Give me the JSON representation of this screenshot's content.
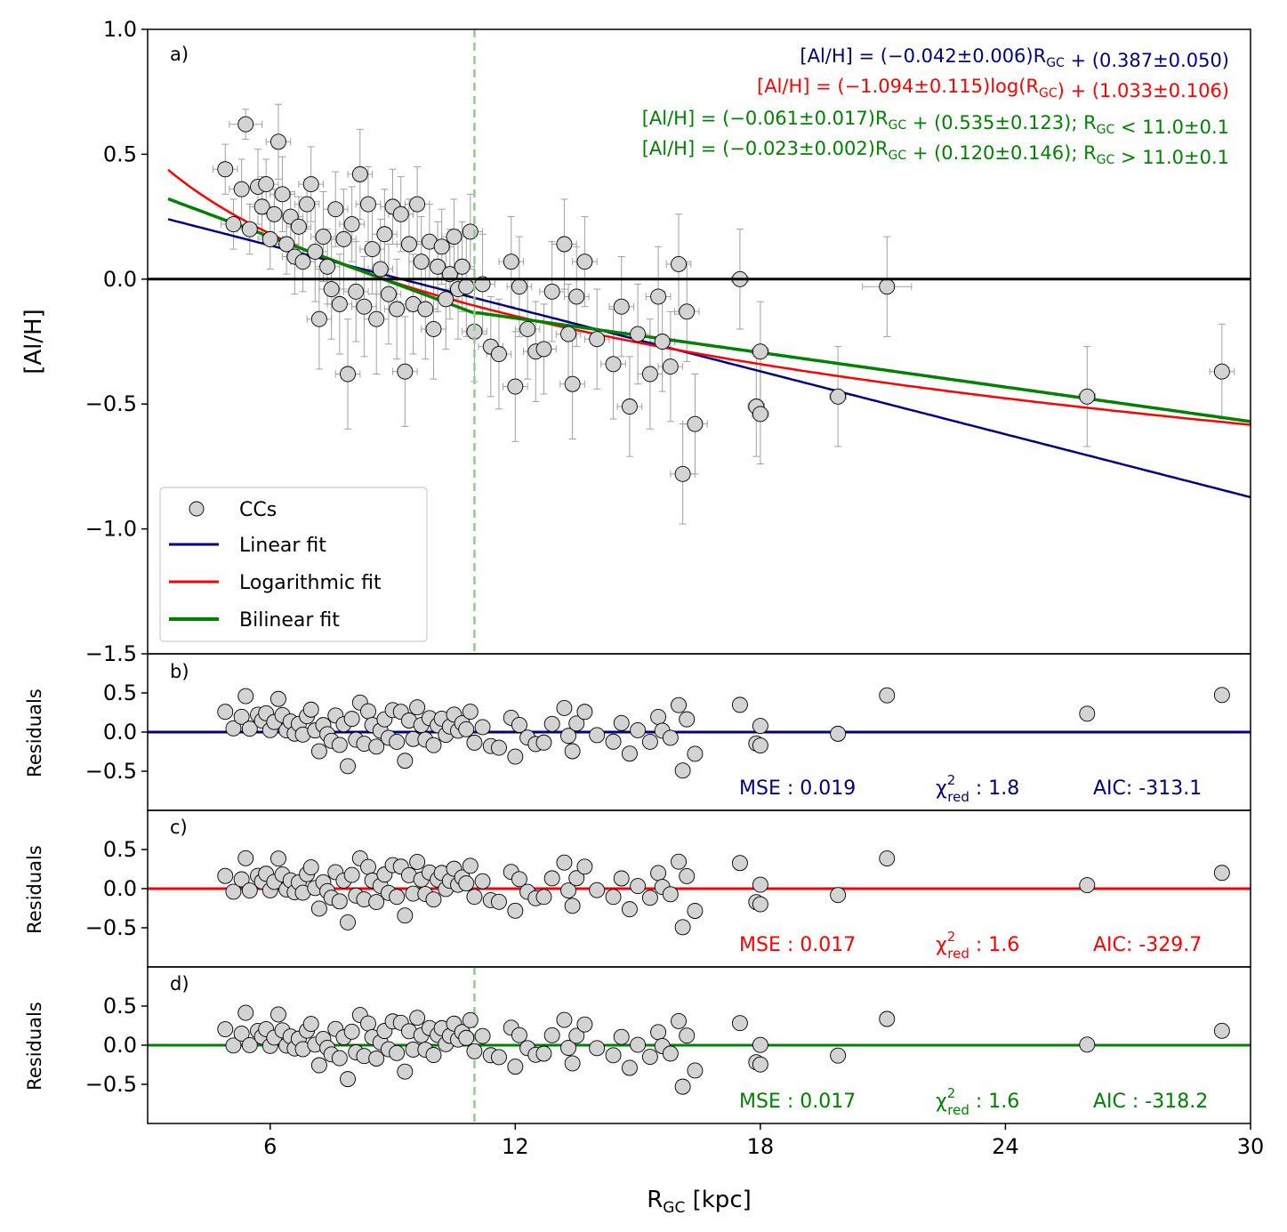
{
  "colors": {
    "linear": "#000080",
    "log": "#ff0000",
    "bilinear": "#008000",
    "marker": "#d3d3d3",
    "errorbar": "#a0a0a0",
    "vline": "#93c993"
  },
  "chart_data": [
    {
      "panel": "a)",
      "type": "scatter",
      "ylabel": "[Al/H]",
      "xlim": [
        3,
        30
      ],
      "ylim": [
        -1.5,
        1.0
      ],
      "yticks": [
        "1.0",
        "0.5",
        "0.0",
        "−0.5",
        "−1.0",
        "−1.5"
      ],
      "vline_x": 11.0,
      "equations": [
        {
          "key": "linear",
          "text": "[Al/H] = (−0.042±0.006)R_GC + (0.387±0.050)"
        },
        {
          "key": "log",
          "text": "[Al/H] = (−1.094±0.115)log(R_GC) + (1.033±0.106)"
        },
        {
          "key": "bilinear",
          "text": "[Al/H] = (−0.061±0.017)R_GC + (0.535±0.123);    R_GC < 11.0±0.1"
        },
        {
          "key": "bilinear",
          "text": "[Al/H] = (−0.023±0.002)R_GC + (0.120±0.146);    R_GC > 11.0±0.1"
        }
      ],
      "legend": {
        "placement": "lower-left",
        "items": [
          {
            "key": "marker",
            "label": "CCs"
          },
          {
            "key": "linear",
            "label": "Linear fit"
          },
          {
            "key": "log",
            "label": "Logarithmic fit"
          },
          {
            "key": "bilinear",
            "label": "Bilinear fit"
          }
        ]
      },
      "fits": {
        "linear": {
          "slope": -0.042,
          "intercept": 0.387
        },
        "log": {
          "slope": -1.094,
          "intercept": 1.033
        },
        "bilinear": {
          "break": 11.0,
          "slope_in": -0.061,
          "intercept_in": 0.535,
          "slope_out": -0.023,
          "intercept_out": 0.12
        }
      },
      "points": [
        {
          "x": 4.9,
          "y": 0.44,
          "ex": 0.3,
          "ey": 0.1
        },
        {
          "x": 5.1,
          "y": 0.22,
          "ex": 0.3,
          "ey": 0.1
        },
        {
          "x": 5.3,
          "y": 0.36,
          "ex": 0.3,
          "ey": 0.12
        },
        {
          "x": 5.4,
          "y": 0.62,
          "ex": 0.4,
          "ey": 0.06
        },
        {
          "x": 5.5,
          "y": 0.2,
          "ex": 0.3,
          "ey": 0.1
        },
        {
          "x": 5.7,
          "y": 0.37,
          "ex": 0.3,
          "ey": 0.15
        },
        {
          "x": 5.8,
          "y": 0.29,
          "ex": 0.3,
          "ey": 0.12
        },
        {
          "x": 5.9,
          "y": 0.38,
          "ex": 0.3,
          "ey": 0.1
        },
        {
          "x": 6.0,
          "y": 0.16,
          "ex": 0.3,
          "ey": 0.12
        },
        {
          "x": 6.1,
          "y": 0.26,
          "ex": 0.3,
          "ey": 0.1
        },
        {
          "x": 6.2,
          "y": 0.55,
          "ex": 0.3,
          "ey": 0.15
        },
        {
          "x": 6.3,
          "y": 0.34,
          "ex": 0.3,
          "ey": 0.15
        },
        {
          "x": 6.4,
          "y": 0.14,
          "ex": 0.3,
          "ey": 0.12
        },
        {
          "x": 6.5,
          "y": 0.25,
          "ex": 0.3,
          "ey": 0.1
        },
        {
          "x": 6.6,
          "y": 0.09,
          "ex": 0.3,
          "ey": 0.15
        },
        {
          "x": 6.7,
          "y": 0.21,
          "ex": 0.3,
          "ey": 0.12
        },
        {
          "x": 6.8,
          "y": 0.07,
          "ex": 0.3,
          "ey": 0.12
        },
        {
          "x": 6.9,
          "y": 0.3,
          "ex": 0.3,
          "ey": 0.1
        },
        {
          "x": 7.0,
          "y": 0.38,
          "ex": 0.3,
          "ey": 0.15
        },
        {
          "x": 7.1,
          "y": 0.11,
          "ex": 0.3,
          "ey": 0.2
        },
        {
          "x": 7.2,
          "y": -0.16,
          "ex": 0.3,
          "ey": 0.2
        },
        {
          "x": 7.3,
          "y": 0.17,
          "ex": 0.3,
          "ey": 0.18
        },
        {
          "x": 7.4,
          "y": 0.05,
          "ex": 0.3,
          "ey": 0.15
        },
        {
          "x": 7.5,
          "y": -0.04,
          "ex": 0.3,
          "ey": 0.2
        },
        {
          "x": 7.6,
          "y": 0.28,
          "ex": 0.3,
          "ey": 0.15
        },
        {
          "x": 7.7,
          "y": -0.1,
          "ex": 0.3,
          "ey": 0.2
        },
        {
          "x": 7.8,
          "y": 0.16,
          "ex": 0.3,
          "ey": 0.2
        },
        {
          "x": 7.9,
          "y": -0.38,
          "ex": 0.3,
          "ey": 0.22
        },
        {
          "x": 8.0,
          "y": 0.22,
          "ex": 0.3,
          "ey": 0.15
        },
        {
          "x": 8.1,
          "y": -0.05,
          "ex": 0.3,
          "ey": 0.2
        },
        {
          "x": 8.2,
          "y": 0.42,
          "ex": 0.3,
          "ey": 0.18
        },
        {
          "x": 8.3,
          "y": -0.11,
          "ex": 0.3,
          "ey": 0.2
        },
        {
          "x": 8.4,
          "y": 0.3,
          "ex": 0.3,
          "ey": 0.15
        },
        {
          "x": 8.5,
          "y": 0.12,
          "ex": 0.3,
          "ey": 0.18
        },
        {
          "x": 8.6,
          "y": -0.16,
          "ex": 0.3,
          "ey": 0.22
        },
        {
          "x": 8.7,
          "y": 0.04,
          "ex": 0.3,
          "ey": 0.2
        },
        {
          "x": 8.8,
          "y": 0.18,
          "ex": 0.3,
          "ey": 0.18
        },
        {
          "x": 8.9,
          "y": -0.06,
          "ex": 0.3,
          "ey": 0.2
        },
        {
          "x": 9.0,
          "y": 0.29,
          "ex": 0.3,
          "ey": 0.15
        },
        {
          "x": 9.1,
          "y": -0.12,
          "ex": 0.3,
          "ey": 0.2
        },
        {
          "x": 9.2,
          "y": 0.26,
          "ex": 0.3,
          "ey": 0.15
        },
        {
          "x": 9.3,
          "y": -0.37,
          "ex": 0.3,
          "ey": 0.22
        },
        {
          "x": 9.4,
          "y": 0.14,
          "ex": 0.3,
          "ey": 0.18
        },
        {
          "x": 9.5,
          "y": -0.1,
          "ex": 0.3,
          "ey": 0.2
        },
        {
          "x": 9.6,
          "y": 0.3,
          "ex": 0.3,
          "ey": 0.15
        },
        {
          "x": 9.7,
          "y": 0.07,
          "ex": 0.3,
          "ey": 0.18
        },
        {
          "x": 9.8,
          "y": -0.12,
          "ex": 0.3,
          "ey": 0.2
        },
        {
          "x": 9.9,
          "y": 0.15,
          "ex": 0.3,
          "ey": 0.15
        },
        {
          "x": 10.0,
          "y": -0.2,
          "ex": 0.3,
          "ey": 0.2
        },
        {
          "x": 10.1,
          "y": 0.05,
          "ex": 0.3,
          "ey": 0.18
        },
        {
          "x": 10.2,
          "y": 0.13,
          "ex": 0.3,
          "ey": 0.15
        },
        {
          "x": 10.3,
          "y": -0.08,
          "ex": 0.3,
          "ey": 0.2
        },
        {
          "x": 10.4,
          "y": 0.02,
          "ex": 0.3,
          "ey": 0.18
        },
        {
          "x": 10.5,
          "y": 0.17,
          "ex": 0.3,
          "ey": 0.15
        },
        {
          "x": 10.6,
          "y": -0.04,
          "ex": 0.3,
          "ey": 0.2
        },
        {
          "x": 10.7,
          "y": 0.05,
          "ex": 0.3,
          "ey": 0.18
        },
        {
          "x": 10.8,
          "y": -0.03,
          "ex": 0.3,
          "ey": 0.2
        },
        {
          "x": 10.9,
          "y": 0.19,
          "ex": 0.3,
          "ey": 0.15
        },
        {
          "x": 11.0,
          "y": -0.21,
          "ex": 0.3,
          "ey": 0.2
        },
        {
          "x": 11.2,
          "y": -0.02,
          "ex": 0.3,
          "ey": 0.2
        },
        {
          "x": 11.4,
          "y": -0.27,
          "ex": 0.3,
          "ey": 0.2
        },
        {
          "x": 11.6,
          "y": -0.3,
          "ex": 0.3,
          "ey": 0.22
        },
        {
          "x": 11.9,
          "y": 0.07,
          "ex": 0.3,
          "ey": 0.18
        },
        {
          "x": 12.0,
          "y": -0.43,
          "ex": 0.3,
          "ey": 0.22
        },
        {
          "x": 12.1,
          "y": -0.03,
          "ex": 0.3,
          "ey": 0.2
        },
        {
          "x": 12.3,
          "y": -0.2,
          "ex": 0.3,
          "ey": 0.2
        },
        {
          "x": 12.5,
          "y": -0.29,
          "ex": 0.3,
          "ey": 0.2
        },
        {
          "x": 12.7,
          "y": -0.28,
          "ex": 0.3,
          "ey": 0.18
        },
        {
          "x": 12.9,
          "y": -0.05,
          "ex": 0.3,
          "ey": 0.2
        },
        {
          "x": 13.2,
          "y": 0.14,
          "ex": 0.3,
          "ey": 0.18
        },
        {
          "x": 13.3,
          "y": -0.22,
          "ex": 0.3,
          "ey": 0.2
        },
        {
          "x": 13.4,
          "y": -0.42,
          "ex": 0.3,
          "ey": 0.22
        },
        {
          "x": 13.5,
          "y": -0.07,
          "ex": 0.3,
          "ey": 0.2
        },
        {
          "x": 13.7,
          "y": 0.07,
          "ex": 0.3,
          "ey": 0.18
        },
        {
          "x": 14.0,
          "y": -0.24,
          "ex": 0.3,
          "ey": 0.2
        },
        {
          "x": 14.4,
          "y": -0.34,
          "ex": 0.3,
          "ey": 0.22
        },
        {
          "x": 14.6,
          "y": -0.11,
          "ex": 0.3,
          "ey": 0.2
        },
        {
          "x": 14.8,
          "y": -0.51,
          "ex": 0.3,
          "ey": 0.2
        },
        {
          "x": 15.0,
          "y": -0.22,
          "ex": 0.3,
          "ey": 0.2
        },
        {
          "x": 15.3,
          "y": -0.38,
          "ex": 0.3,
          "ey": 0.22
        },
        {
          "x": 15.5,
          "y": -0.07,
          "ex": 0.3,
          "ey": 0.2
        },
        {
          "x": 15.6,
          "y": -0.25,
          "ex": 0.3,
          "ey": 0.2
        },
        {
          "x": 15.8,
          "y": -0.35,
          "ex": 0.3,
          "ey": 0.22
        },
        {
          "x": 16.0,
          "y": 0.06,
          "ex": 0.3,
          "ey": 0.2
        },
        {
          "x": 16.1,
          "y": -0.78,
          "ex": 0.3,
          "ey": 0.2
        },
        {
          "x": 16.2,
          "y": -0.13,
          "ex": 0.3,
          "ey": 0.2
        },
        {
          "x": 16.4,
          "y": -0.58,
          "ex": 0.3,
          "ey": 0.2
        },
        {
          "x": 17.5,
          "y": 0.0,
          "ex": 0.2,
          "ey": 0.2
        },
        {
          "x": 17.9,
          "y": -0.51,
          "ex": 0.2,
          "ey": 0.2
        },
        {
          "x": 18.0,
          "y": -0.29,
          "ex": 0.2,
          "ey": 0.2
        },
        {
          "x": 18.0,
          "y": -0.54,
          "ex": 0.2,
          "ey": 0.2
        },
        {
          "x": 19.9,
          "y": -0.47,
          "ex": 0.2,
          "ey": 0.2
        },
        {
          "x": 21.1,
          "y": -0.03,
          "ex": 0.6,
          "ey": 0.2
        },
        {
          "x": 26.0,
          "y": -0.47,
          "ex": 0.2,
          "ey": 0.2
        },
        {
          "x": 29.3,
          "y": -0.37,
          "ex": 0.3,
          "ey": 0.19
        }
      ]
    },
    {
      "panel": "b)",
      "type": "scatter",
      "ylabel": "Residuals",
      "fit": "linear",
      "yticks": [
        "0.5",
        "0.0",
        "−0.5"
      ],
      "stats": {
        "mse": "MSE :  0.019",
        "chi_sym": "χ",
        "chi_sup": "2",
        "chi_sub": "red",
        "chi_val": " :  1.8",
        "aic": "AIC: -313.1"
      }
    },
    {
      "panel": "c)",
      "type": "scatter",
      "ylabel": "Residuals",
      "fit": "log",
      "yticks": [
        "0.5",
        "0.0",
        "−0.5"
      ],
      "stats": {
        "mse": "MSE :  0.017",
        "chi_sym": "χ",
        "chi_sup": "2",
        "chi_sub": "red",
        "chi_val": " :  1.6",
        "aic": "AIC: -329.7"
      }
    },
    {
      "panel": "d)",
      "type": "scatter",
      "ylabel": "Residuals",
      "fit": "bilinear",
      "yticks": [
        "0.5",
        "0.0",
        "−0.5"
      ],
      "stats": {
        "mse": "MSE :  0.017",
        "chi_sym": "χ",
        "chi_sup": "2",
        "chi_sub": "red",
        "chi_val": " :  1.6",
        "aic": "AIC :  -318.2"
      }
    }
  ],
  "xaxis": {
    "ticks": [
      "6",
      "12",
      "18",
      "24",
      "30"
    ],
    "tick_values": [
      6,
      12,
      18,
      24,
      30
    ],
    "label": "R",
    "label_sub": "GC",
    "label_unit": " [kpc]"
  }
}
